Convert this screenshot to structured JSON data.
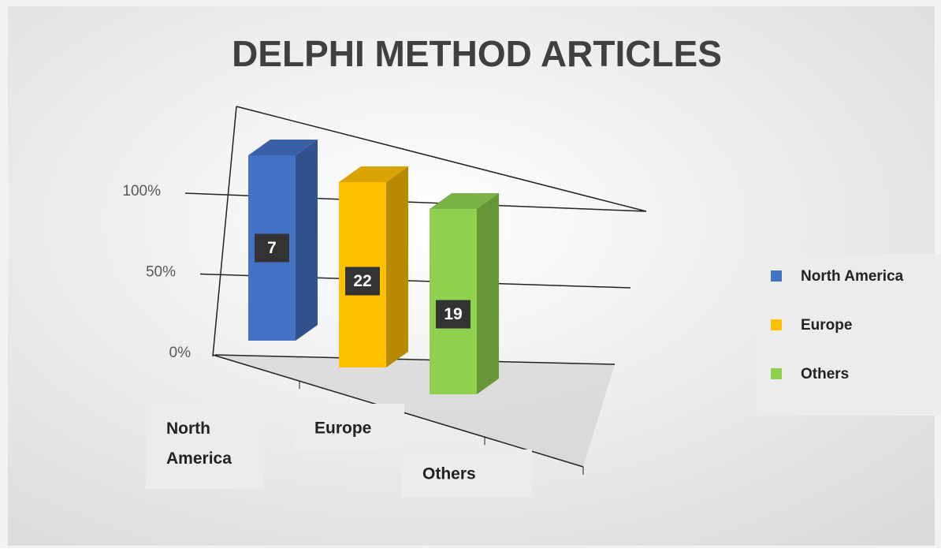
{
  "chart_data": {
    "type": "bar3d",
    "stacking": "percent",
    "title": "DELPHI METHOD ARTICLES",
    "categories": [
      "North America",
      "Europe",
      "Others"
    ],
    "series": [
      {
        "name": "North America",
        "color": "#4472c4",
        "values": [
          7,
          null,
          null
        ]
      },
      {
        "name": "Europe",
        "color": "#ffc000",
        "values": [
          null,
          22,
          null
        ]
      },
      {
        "name": "Others",
        "color": "#8fd14f",
        "values": [
          null,
          null,
          19
        ]
      }
    ],
    "ylim": [
      0,
      100
    ],
    "yticks": [
      {
        "value": 0,
        "label": "0%"
      },
      {
        "value": 50,
        "label": "50%"
      },
      {
        "value": 100,
        "label": "100%"
      }
    ],
    "grid": true,
    "legend": "right"
  }
}
